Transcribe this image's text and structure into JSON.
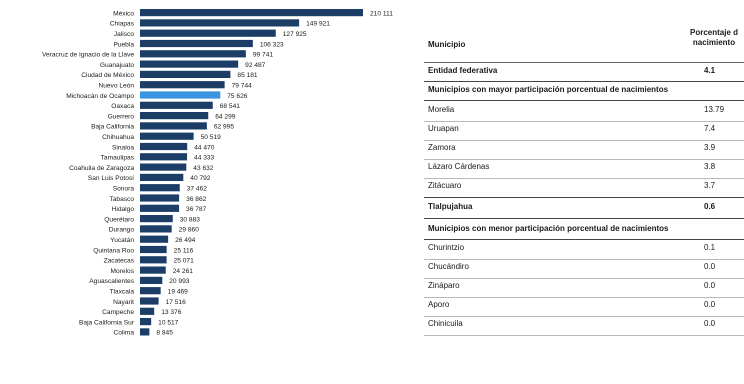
{
  "chart_data": {
    "type": "bar",
    "orientation": "horizontal",
    "categories": [
      "México",
      "Chiapas",
      "Jalisco",
      "Puebla",
      "Veracruz de Ignacio de la Llave",
      "Guanajuato",
      "Ciudad de México",
      "Nuevo León",
      "Michoacán de Ocampo",
      "Oaxaca",
      "Guerrero",
      "Baja California",
      "Chihuahua",
      "Sinaloa",
      "Tamaulipas",
      "Coahuila de Zaragoza",
      "San Luis Potosí",
      "Sonora",
      "Tabasco",
      "Hidalgo",
      "Querétaro",
      "Durango",
      "Yucatán",
      "Quintana Roo",
      "Zacatecas",
      "Morelos",
      "Aguascalientes",
      "Tlaxcala",
      "Nayarit",
      "Campeche",
      "Baja California Sur",
      "Colima"
    ],
    "values": [
      210111,
      149921,
      127925,
      106323,
      99741,
      92487,
      85181,
      79744,
      75626,
      68541,
      64299,
      62995,
      50519,
      44470,
      44333,
      43632,
      40792,
      37462,
      36862,
      36787,
      30883,
      29860,
      26494,
      25116,
      25071,
      24261,
      20993,
      19469,
      17516,
      13376,
      10517,
      8845
    ],
    "value_labels": [
      "210 111",
      "149 921",
      "127 925",
      "106 323",
      "99 741",
      "92 487",
      "85 181",
      "79 744",
      "75 626",
      "68 541",
      "64 299",
      "62 995",
      "50 519",
      "44 470",
      "44 333",
      "43 632",
      "40 792",
      "37 462",
      "36 862",
      "36 787",
      "30 883",
      "29 860",
      "26 494",
      "25 116",
      "25 071",
      "24 261",
      "20 993",
      "19 469",
      "17 516",
      "13 376",
      "10 517",
      "8 845"
    ],
    "highlight": "Michoacán de Ocampo",
    "colors": {
      "bar": "#1c3d66",
      "highlight": "#3a94e0"
    },
    "legend": "none",
    "grid": false
  },
  "table": {
    "header": {
      "municipio": "Municipio",
      "porcentaje": [
        "Porcentaje d",
        "nacimiento"
      ]
    },
    "entidad": {
      "label": "Entidad federativa",
      "value": "4.1"
    },
    "mayor_title": "Municipios con mayor participación porcentual  de nacimientos",
    "mayor": [
      {
        "name": "Morelia",
        "value": "13.79"
      },
      {
        "name": "Uruapan",
        "value": "7.4"
      },
      {
        "name": "Zamora",
        "value": "3.9"
      },
      {
        "name": "Lázaro Cárdenas",
        "value": "3.8"
      },
      {
        "name": "Zitácuaro",
        "value": "3.7"
      }
    ],
    "tlalpujahua": {
      "name": "Tlalpujahua",
      "value": "0.6"
    },
    "menor_title": "Municipios con menor participación porcentual  de nacimientos",
    "menor": [
      {
        "name": "Churintzio",
        "value": "0.1"
      },
      {
        "name": "Chucándiro",
        "value": "0.0"
      },
      {
        "name": "Zináparo",
        "value": "0.0"
      },
      {
        "name": "Aporo",
        "value": "0.0"
      },
      {
        "name": "Chinicuila",
        "value": "0.0"
      }
    ]
  }
}
